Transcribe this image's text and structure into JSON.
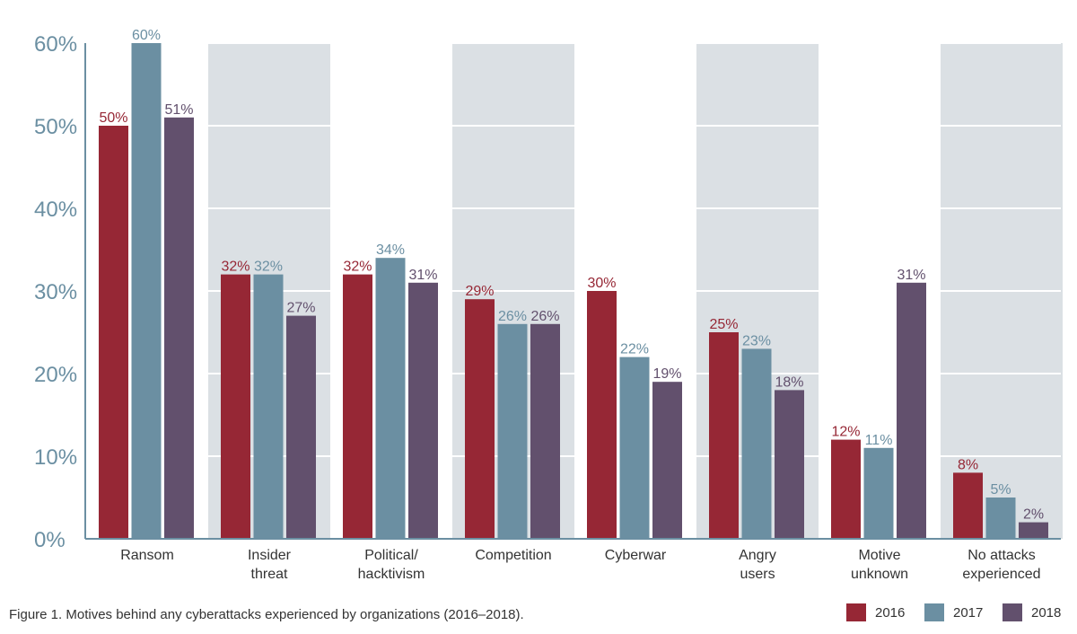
{
  "chart_data": {
    "type": "bar",
    "categories": [
      [
        "Ransom"
      ],
      [
        "Insider",
        "threat"
      ],
      [
        "Political/",
        "hacktivism"
      ],
      [
        "Competition"
      ],
      [
        "Cyberwar"
      ],
      [
        "Angry",
        "users"
      ],
      [
        "Motive",
        "unknown"
      ],
      [
        "No attacks",
        "experienced"
      ]
    ],
    "series": [
      {
        "name": "2016",
        "color": "#962735",
        "values": [
          50,
          32,
          32,
          29,
          30,
          25,
          12,
          8
        ]
      },
      {
        "name": "2017",
        "color": "#6b8fa2",
        "values": [
          60,
          32,
          34,
          26,
          22,
          23,
          11,
          5
        ]
      },
      {
        "name": "2018",
        "color": "#62506d",
        "values": [
          51,
          27,
          31,
          26,
          19,
          18,
          31,
          2
        ]
      }
    ],
    "value_suffix": "%",
    "yticks": [
      "0%",
      "10%",
      "20%",
      "30%",
      "40%",
      "50%",
      "60%"
    ],
    "ylim": [
      0,
      60
    ],
    "grid": true,
    "alternating_band_color": "#dbe0e4",
    "axis_color": "#6b8fa2",
    "legend_position": "bottom-right"
  },
  "caption": "Figure 1. Motives behind any cyberattacks experienced by organizations (2016–2018)."
}
